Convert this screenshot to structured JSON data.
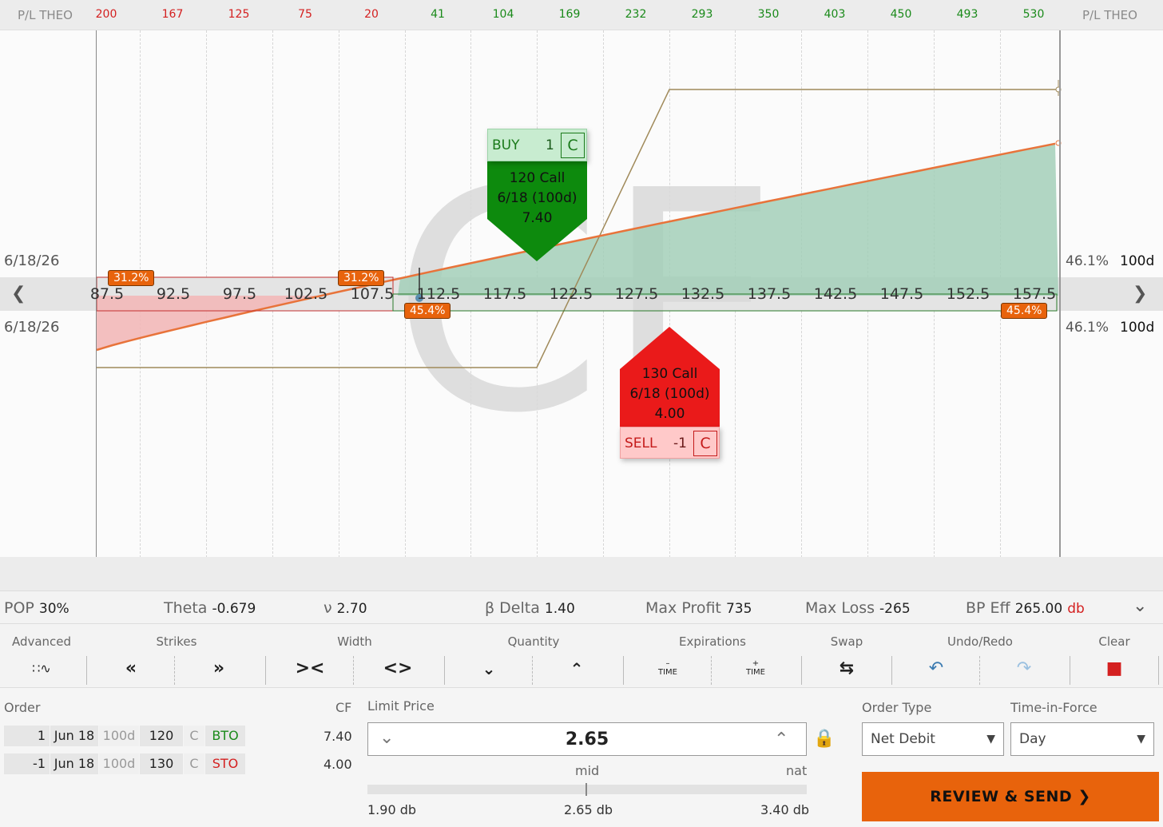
{
  "header": {
    "pl_label_left": "P/L THEO",
    "pl_label_right": "P/L THEO",
    "pl_ticks": [
      "200",
      "167",
      "125",
      "75",
      "20",
      "41",
      "104",
      "169",
      "232",
      "293",
      "350",
      "403",
      "450",
      "493",
      "530"
    ]
  },
  "chart": {
    "date_label_top": "6/18/26",
    "date_label_bottom": "6/18/26",
    "iv_top": "46.1%",
    "days_top": "100d",
    "iv_bottom": "46.1%",
    "days_bottom": "100d",
    "strikes": [
      "87.5",
      "92.5",
      "97.5",
      "102.5",
      "107.5",
      "112.5",
      "117.5",
      "122.5",
      "127.5",
      "132.5",
      "137.5",
      "142.5",
      "147.5",
      "152.5",
      "157.5"
    ],
    "prob_left_1": "31.2%",
    "prob_left_2": "31.2%",
    "prob_right_1": "45.4%",
    "prob_right_2": "45.4%",
    "watermark_letters": "CF",
    "colors": {
      "profit": "#a3cfb8",
      "loss": "#f2b8b8",
      "curve": "#e8733a",
      "expiry": "#a08a5a"
    }
  },
  "buy_leg": {
    "action": "BUY",
    "qty": "1",
    "type": "C",
    "line1": "120 Call",
    "line2": "6/18 (100d)",
    "line3": "7.40"
  },
  "sell_leg": {
    "action": "SELL",
    "qty": "-1",
    "type": "C",
    "line1": "130 Call",
    "line2": "6/18 (100d)",
    "line3": "4.00"
  },
  "stats": {
    "pop_label": "POP",
    "pop": "30%",
    "theta_label": "Theta",
    "theta": "-0.679",
    "vega_label": "ν",
    "vega": "2.70",
    "delta_label": "β Delta",
    "delta": "1.40",
    "max_profit_label": "Max Profit",
    "max_profit": "735",
    "max_loss_label": "Max Loss",
    "max_loss": "-265",
    "bp_label": "BP Eff",
    "bp": "265.00",
    "bp_suffix": "db"
  },
  "toolbar": {
    "advanced": "Advanced",
    "strikes": "Strikes",
    "width": "Width",
    "quantity": "Quantity",
    "expirations": "Expirations",
    "swap": "Swap",
    "undo_redo": "Undo/Redo",
    "clear": "Clear",
    "time_minus": "TIME",
    "time_plus": "TIME"
  },
  "order": {
    "title": "Order",
    "cf_label": "CF",
    "legs": [
      {
        "qty": "1",
        "exp": "Jun 18",
        "dte": "100d",
        "strike": "120",
        "type": "C",
        "action": "BTO",
        "cf": "7.40"
      },
      {
        "qty": "-1",
        "exp": "Jun 18",
        "dte": "100d",
        "strike": "130",
        "type": "C",
        "action": "STO",
        "cf": "4.00"
      }
    ],
    "limit_label": "Limit Price",
    "limit_value": "2.65",
    "mid_label": "mid",
    "nat_label": "nat",
    "range_low": "1.90 db",
    "range_mid": "2.65 db",
    "range_high": "3.40 db",
    "order_type_label": "Order Type",
    "order_type": "Net Debit",
    "tif_label": "Time-in-Force",
    "tif": "Day",
    "review_button": "REVIEW & SEND"
  }
}
